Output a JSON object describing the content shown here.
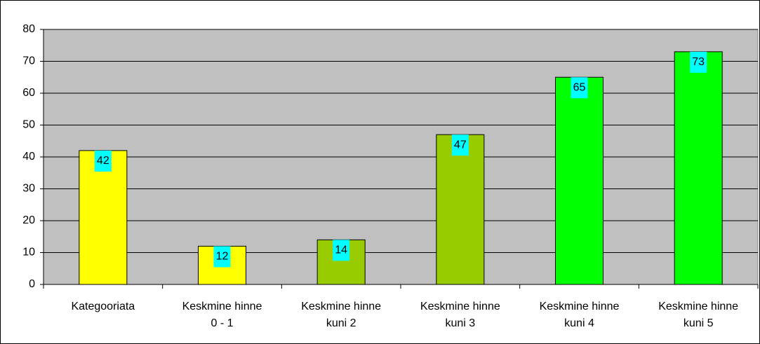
{
  "chart_data": {
    "type": "bar",
    "categories": [
      [
        "Kategooriata"
      ],
      [
        "Keskmine hinne",
        "0 - 1"
      ],
      [
        "Keskmine hinne",
        "kuni 2"
      ],
      [
        "Keskmine hinne",
        "kuni 3"
      ],
      [
        "Keskmine hinne",
        "kuni 4"
      ],
      [
        "Keskmine hinne",
        "kuni 5"
      ]
    ],
    "values": [
      42,
      12,
      14,
      47,
      65,
      73
    ],
    "colors": [
      "#ffff00",
      "#ffff00",
      "#99cc00",
      "#99cc00",
      "#00ff00",
      "#00ff00"
    ],
    "label_color": "#00ffff",
    "plot_background": "#c0c0c0",
    "ylim": [
      0,
      80
    ],
    "yticks": [
      0,
      10,
      20,
      30,
      40,
      50,
      60,
      70,
      80
    ],
    "grid": true
  }
}
